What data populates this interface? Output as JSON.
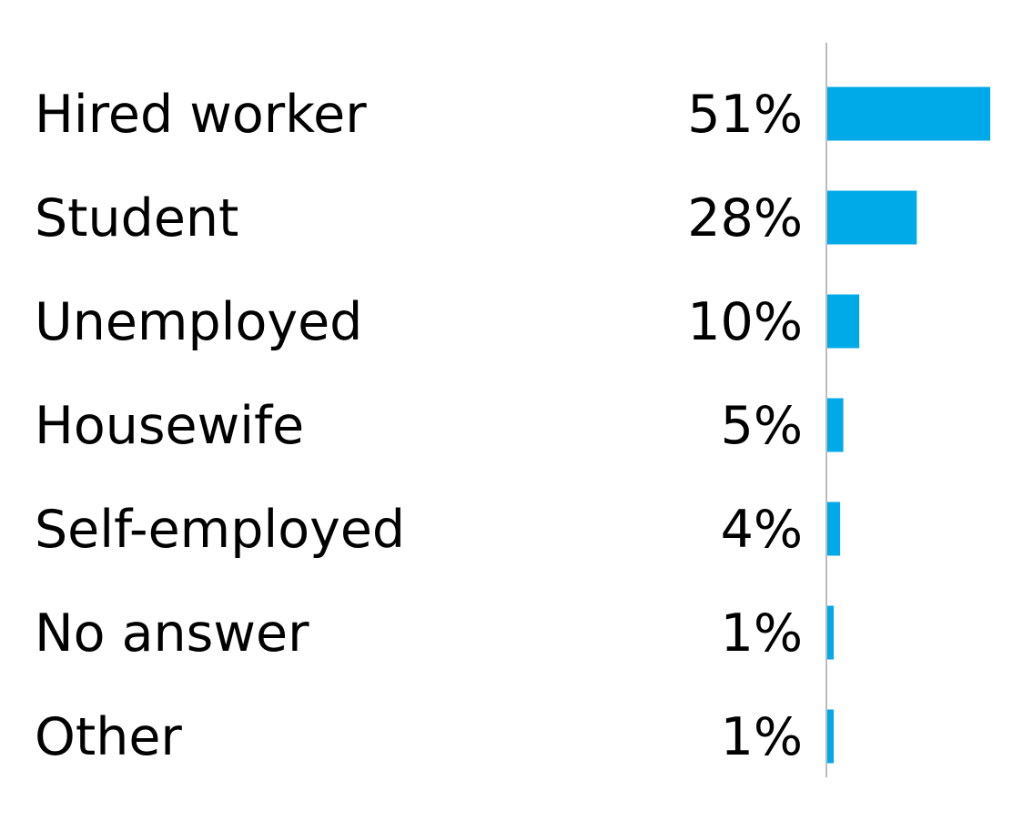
{
  "chart_data": {
    "type": "bar",
    "orientation": "horizontal",
    "categories": [
      "Hired worker",
      "Student",
      "Unemployed",
      "Housewife",
      "Self-employed",
      "No answer",
      "Other"
    ],
    "values": [
      51,
      28,
      10,
      5,
      4,
      1,
      1
    ],
    "value_labels": [
      "51%",
      "28%",
      "10%",
      "5%",
      "4%",
      "1%",
      "1%"
    ],
    "unit": "%",
    "title": "",
    "xlabel": "",
    "ylabel": "",
    "xlim": [
      0,
      51
    ],
    "grid": false,
    "legend": "none",
    "bar_color": "#00A9E8",
    "axis_color": "#A6A6A6"
  }
}
